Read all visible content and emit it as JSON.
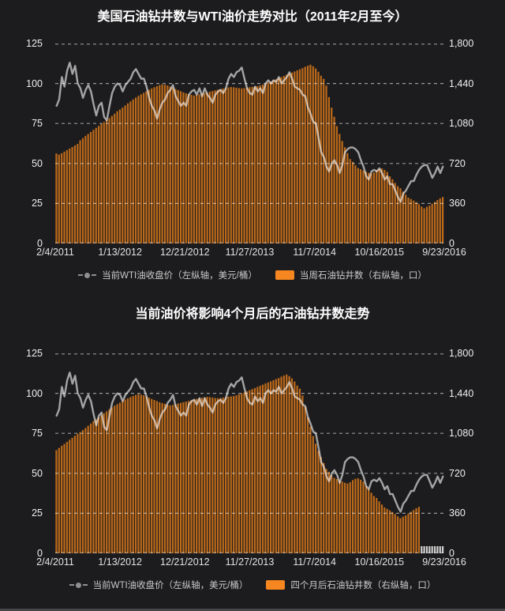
{
  "page": {
    "background_color": "#1c1c1e",
    "title_color": "#ffffff",
    "axis_label_color": "#efefef",
    "legend_text_color": "#c9c9c9"
  },
  "chart_data": [
    {
      "type": "combo-bar-line",
      "title": "美国石油钻井数与WTI油价走势对比（2011年2月至今）",
      "x_tick_labels": [
        "2/4/2011",
        "1/13/2012",
        "12/21/2012",
        "11/27/2013",
        "11/7/2014",
        "10/16/2015",
        "9/23/2016"
      ],
      "left_axis": {
        "max": 125,
        "min": 0,
        "ticks": [
          125,
          100,
          75,
          50,
          25,
          0
        ],
        "tick_labels": [
          "125",
          "100",
          "75",
          "50",
          "25",
          "0"
        ]
      },
      "right_axis": {
        "max": 1800,
        "min": 0,
        "tick_labels": [
          "1,800",
          "1,440",
          "1,080",
          "720",
          "360",
          "0"
        ]
      },
      "grid": {
        "dashed": true,
        "color": "#ffffff",
        "opacity": 0.55
      },
      "legend_marker_color": "#8f8f8f",
      "legend_swatch_color": "#f6861f",
      "series": [
        {
          "name": "当前WTI油收盘价（左纵轴，美元/桶）",
          "type": "line",
          "axis": "left",
          "color": "#ffffff",
          "opacity": 0.6,
          "values": [
            86,
            90,
            104,
            98,
            108,
            113,
            106,
            111,
            100,
            97,
            91,
            96,
            99,
            95,
            87,
            80,
            86,
            88,
            79,
            77,
            86,
            94,
            98,
            100,
            99,
            95,
            99,
            101,
            103,
            107,
            109,
            106,
            103,
            103,
            98,
            91,
            86,
            83,
            78,
            84,
            88,
            90,
            94,
            96,
            99,
            92,
            89,
            86,
            88,
            86,
            93,
            95,
            96,
            93,
            97,
            92,
            97,
            93,
            91,
            88,
            93,
            95,
            96,
            94,
            97,
            103,
            106,
            104,
            107,
            108,
            110,
            103,
            97,
            94,
            93,
            98,
            95,
            97,
            94,
            100,
            102,
            100,
            102,
            101,
            104,
            100,
            102,
            104,
            107,
            103,
            98,
            97,
            96,
            93,
            92,
            85,
            81,
            76,
            75,
            66,
            57,
            54,
            48,
            45,
            50,
            52,
            49,
            44,
            49,
            57,
            59,
            60,
            60,
            59,
            57,
            52,
            48,
            42,
            40,
            45,
            46,
            45,
            47,
            44,
            40,
            42,
            37,
            37,
            33,
            29,
            26,
            31,
            33,
            36,
            39,
            39,
            43,
            46,
            48,
            49,
            49,
            45,
            41,
            44,
            48,
            44,
            48
          ]
        },
        {
          "name": "当周石油钻井数（右纵轴，口）",
          "type": "bar",
          "axis": "right",
          "color": "#bd6a1a",
          "values": [
            810,
            800,
            812,
            826,
            840,
            854,
            868,
            882,
            896,
            928,
            948,
            968,
            985,
            1003,
            1022,
            1040,
            1058,
            1075,
            1092,
            1110,
            1128,
            1148,
            1168,
            1190,
            1205,
            1223,
            1242,
            1261,
            1278,
            1296,
            1313,
            1328,
            1342,
            1356,
            1370,
            1383,
            1395,
            1406,
            1416,
            1425,
            1432,
            1428,
            1422,
            1412,
            1400,
            1390,
            1380,
            1370,
            1360,
            1352,
            1345,
            1338,
            1332,
            1336,
            1342,
            1348,
            1354,
            1360,
            1366,
            1372,
            1378,
            1384,
            1390,
            1395,
            1400,
            1404,
            1408,
            1406,
            1402,
            1398,
            1396,
            1398,
            1402,
            1406,
            1410,
            1412,
            1416,
            1422,
            1430,
            1438,
            1448,
            1458,
            1468,
            1478,
            1488,
            1498,
            1508,
            1518,
            1528,
            1538,
            1548,
            1558,
            1568,
            1578,
            1590,
            1600,
            1609,
            1595,
            1575,
            1546,
            1510,
            1482,
            1421,
            1317,
            1223,
            1140,
            1056,
            986,
            922,
            866,
            813,
            760,
            734,
            703,
            679,
            668,
            655,
            646,
            635,
            628,
            640,
            659,
            670,
            675,
            662,
            644,
            605,
            578,
            545,
            516,
            498,
            467,
            439,
            413,
            400,
            386,
            372,
            354,
            332,
            316,
            330,
            341,
            357,
            374,
            390,
            406,
            418
          ]
        }
      ]
    },
    {
      "type": "combo-bar-line",
      "title": "当前油价将影响4个月后的石油钻井数走势",
      "x_tick_labels": [
        "2/4/2011",
        "1/13/2012",
        "12/21/2012",
        "11/27/2013",
        "11/7/2014",
        "10/16/2015",
        "9/23/2016"
      ],
      "left_axis": {
        "max": 125,
        "min": 0,
        "ticks": [
          125,
          100,
          75,
          50,
          25,
          0
        ],
        "tick_labels": [
          "125",
          "100",
          "75",
          "50",
          "25",
          "0"
        ]
      },
      "right_axis": {
        "max": 1800,
        "min": 0,
        "tick_labels": [
          "1,800",
          "1,440",
          "1,080",
          "720",
          "360",
          "0"
        ]
      },
      "grid": {
        "dashed": true,
        "color": "#ffffff",
        "opacity": 0.55
      },
      "legend_marker_color": "#8f8f8f",
      "legend_swatch_color": "#f6861f",
      "placeholder_color": "#cfcfcf",
      "placeholder_note": "last 4 months of shifted rig-count series unknown, shown as short hatched gray bars",
      "series": [
        {
          "name": "当前WTI油收盘价（左纵轴，美元/桶）",
          "type": "line",
          "axis": "left",
          "color": "#ffffff",
          "opacity": 0.6,
          "values": [
            86,
            90,
            104,
            98,
            108,
            113,
            106,
            111,
            100,
            97,
            91,
            96,
            99,
            95,
            87,
            80,
            86,
            88,
            79,
            77,
            86,
            94,
            98,
            100,
            99,
            95,
            99,
            101,
            103,
            107,
            109,
            106,
            103,
            103,
            98,
            91,
            86,
            83,
            78,
            84,
            88,
            90,
            94,
            96,
            99,
            92,
            89,
            86,
            88,
            86,
            93,
            95,
            96,
            93,
            97,
            92,
            97,
            93,
            91,
            88,
            93,
            95,
            96,
            94,
            97,
            103,
            106,
            104,
            107,
            108,
            110,
            103,
            97,
            94,
            93,
            98,
            95,
            97,
            94,
            100,
            102,
            100,
            102,
            101,
            104,
            100,
            102,
            104,
            107,
            103,
            98,
            97,
            96,
            93,
            92,
            85,
            81,
            76,
            75,
            66,
            57,
            54,
            48,
            45,
            50,
            52,
            49,
            44,
            49,
            57,
            59,
            60,
            60,
            59,
            57,
            52,
            48,
            42,
            40,
            45,
            46,
            45,
            47,
            44,
            40,
            42,
            37,
            37,
            33,
            29,
            26,
            31,
            33,
            36,
            39,
            39,
            43,
            46,
            48,
            49,
            49,
            45,
            41,
            44,
            48,
            44,
            48
          ]
        },
        {
          "name": "四个月后石油钻井数（右纵轴，口）",
          "type": "bar",
          "axis": "right",
          "color": "#bd6a1a",
          "values": [
            928,
            948,
            968,
            985,
            1003,
            1022,
            1040,
            1058,
            1075,
            1092,
            1110,
            1128,
            1148,
            1168,
            1190,
            1205,
            1223,
            1242,
            1261,
            1278,
            1296,
            1313,
            1328,
            1342,
            1356,
            1370,
            1383,
            1395,
            1406,
            1416,
            1425,
            1432,
            1428,
            1422,
            1412,
            1400,
            1390,
            1380,
            1370,
            1360,
            1352,
            1345,
            1338,
            1332,
            1336,
            1342,
            1348,
            1354,
            1360,
            1366,
            1372,
            1378,
            1384,
            1390,
            1395,
            1400,
            1404,
            1408,
            1406,
            1402,
            1398,
            1396,
            1398,
            1402,
            1406,
            1410,
            1412,
            1416,
            1422,
            1430,
            1438,
            1448,
            1458,
            1468,
            1478,
            1488,
            1498,
            1508,
            1518,
            1528,
            1538,
            1548,
            1558,
            1568,
            1578,
            1590,
            1600,
            1609,
            1595,
            1575,
            1546,
            1510,
            1482,
            1421,
            1317,
            1223,
            1140,
            1056,
            986,
            922,
            866,
            813,
            760,
            734,
            703,
            679,
            668,
            655,
            646,
            635,
            628,
            640,
            659,
            670,
            675,
            662,
            644,
            605,
            578,
            545,
            516,
            498,
            467,
            439,
            413,
            400,
            386,
            372,
            354,
            332,
            316,
            330,
            341,
            357,
            374,
            390,
            406,
            418,
            null,
            null,
            null,
            null,
            null,
            null,
            null,
            null,
            null
          ]
        }
      ]
    }
  ]
}
